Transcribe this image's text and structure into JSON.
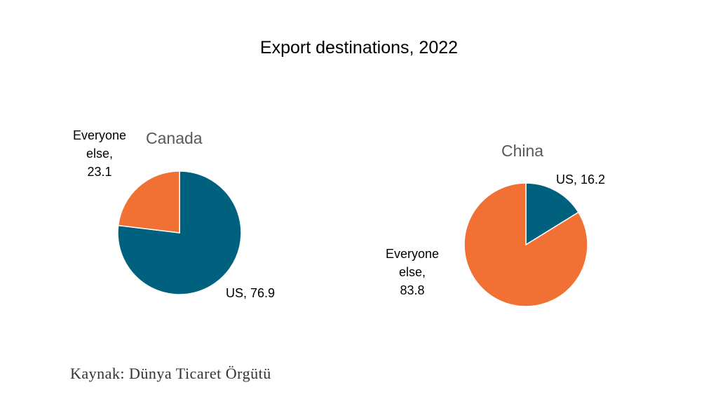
{
  "chart_data": {
    "type": "pie",
    "title": "Export destinations, 2022",
    "colors": {
      "us": "#00617f",
      "everyone_else": "#f07133"
    },
    "pies": [
      {
        "name": "Canada",
        "slices": [
          {
            "label_lines": [
              "US, 76.9"
            ],
            "value": 76.9,
            "color": "#00617f"
          },
          {
            "label_lines": [
              "Everyone",
              "else,",
              "23.1"
            ],
            "value": 23.1,
            "color": "#f07133"
          }
        ]
      },
      {
        "name": "China",
        "slices": [
          {
            "label_lines": [
              "US, 16.2"
            ],
            "value": 16.2,
            "color": "#00617f"
          },
          {
            "label_lines": [
              "Everyone",
              "else,",
              "83.8"
            ],
            "value": 83.8,
            "color": "#f07133"
          }
        ]
      }
    ]
  },
  "footer": {
    "source": "Kaynak: Dünya Ticaret Örgütü"
  }
}
